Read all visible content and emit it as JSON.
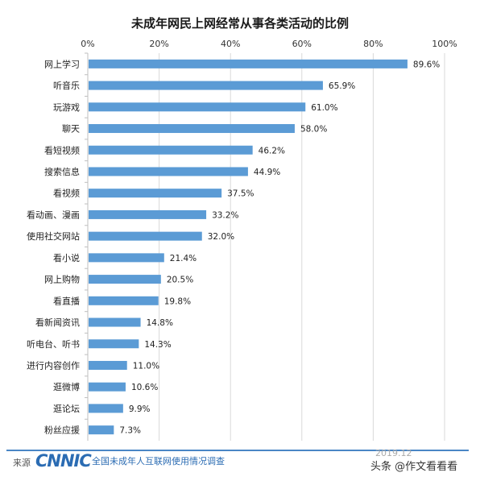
{
  "chart_data": {
    "type": "bar",
    "orientation": "horizontal",
    "title": "未成年网民上网经常从事各类活动的比例",
    "categories": [
      "网上学习",
      "听音乐",
      "玩游戏",
      "聊天",
      "看短视频",
      "搜索信息",
      "看视频",
      "看动画、漫画",
      "使用社交网站",
      "看小说",
      "网上购物",
      "看直播",
      "看新闻资讯",
      "听电台、听书",
      "进行内容创作",
      "逛微博",
      "逛论坛",
      "粉丝应援"
    ],
    "values": [
      89.6,
      65.9,
      61.0,
      58.0,
      46.2,
      44.9,
      37.5,
      33.2,
      32.0,
      21.4,
      20.5,
      19.8,
      14.8,
      14.3,
      11.0,
      10.6,
      9.9,
      7.3
    ],
    "value_labels": [
      "89.6%",
      "65.9%",
      "61.0%",
      "58.0%",
      "46.2%",
      "44.9%",
      "37.5%",
      "33.2%",
      "32.0%",
      "21.4%",
      "20.5%",
      "19.8%",
      "14.8%",
      "14.3%",
      "11.0%",
      "10.6%",
      "9.9%",
      "7.3%"
    ],
    "xlim": [
      0,
      100
    ],
    "xticks": [
      0,
      20,
      40,
      60,
      80,
      100
    ],
    "xtick_labels": [
      "0%",
      "20%",
      "40%",
      "60%",
      "80%",
      "100%"
    ],
    "axis_position": "top",
    "grid": true,
    "bar_color": "#5b9bd5"
  },
  "footer": {
    "source_label": "来源",
    "logo_text": "CNNIC",
    "survey_text": "全国未成年人互联网使用情况调查",
    "date_text": "2019.12",
    "watermark": "头条 @作文看看看"
  }
}
